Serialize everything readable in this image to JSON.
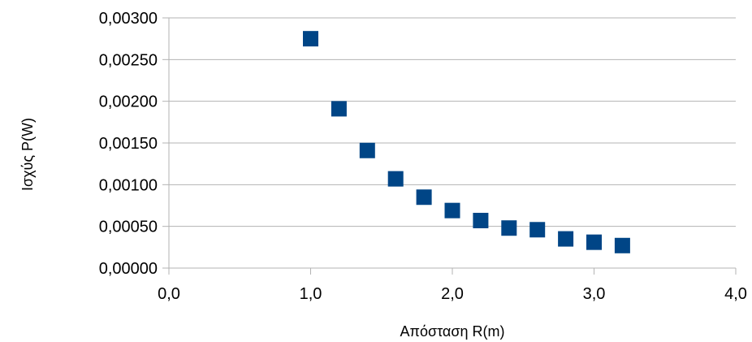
{
  "chart_data": {
    "type": "scatter",
    "title": "",
    "xlabel": "Απόσταση R(m)",
    "ylabel": "Ισχύς P(W)",
    "xlim": [
      0,
      4
    ],
    "ylim": [
      0,
      0.003
    ],
    "x_ticks": [
      0,
      1,
      2,
      3,
      4
    ],
    "x_tick_labels": [
      "0,0",
      "1,0",
      "2,0",
      "3,0",
      "4,0"
    ],
    "y_ticks": [
      0,
      0.0005,
      0.001,
      0.0015,
      0.002,
      0.0025,
      0.003
    ],
    "y_tick_labels": [
      "0,00000",
      "0,00050",
      "0,00100",
      "0,00150",
      "0,00200",
      "0,00250",
      "0,00300"
    ],
    "grid": "horizontal",
    "legend": "none",
    "marker": "square",
    "color": "#004586",
    "series": [
      {
        "x": [
          1.0,
          1.2,
          1.4,
          1.6,
          1.8,
          2.0,
          2.2,
          2.4,
          2.6,
          2.8,
          3.0,
          3.2
        ],
        "y": [
          0.00275,
          0.00191,
          0.00141,
          0.00107,
          0.00085,
          0.00069,
          0.00057,
          0.00048,
          0.00046,
          0.00035,
          0.00031,
          0.00027
        ]
      }
    ]
  }
}
